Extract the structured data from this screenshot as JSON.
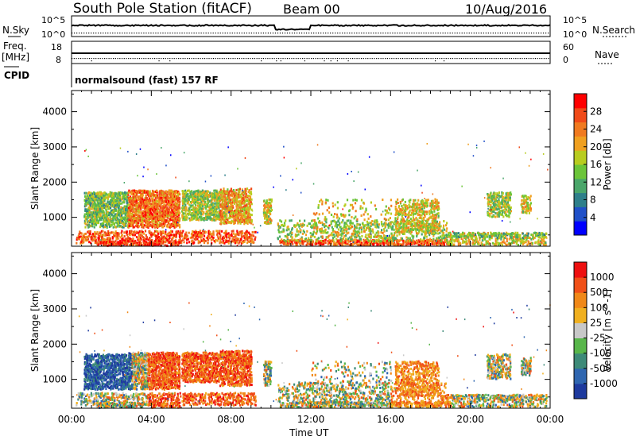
{
  "header": {
    "station": "South Pole Station (fitACF)",
    "beam": "Beam 00",
    "date": "10/Aug/2016"
  },
  "top_panels": {
    "nsky_label": "N.Sky",
    "nsky_ticks": [
      "10^5",
      "10^0"
    ],
    "nsearch_label": "N.Search",
    "freq_label_1": "Freq.",
    "freq_label_2": "[MHz]",
    "freq_ticks": [
      "18",
      "8"
    ],
    "nave_label": "Nave",
    "nave_ticks": [
      "60",
      "0"
    ],
    "cpid_label": "CPID",
    "cpid_text": "normalsound (fast) 157 RF"
  },
  "colors": {
    "power": [
      "#0000ff",
      "#2050c8",
      "#2e7f8a",
      "#4aa66a",
      "#6cc53a",
      "#b8cc20",
      "#f0a020",
      "#f07a20",
      "#f04a18",
      "#ff0000"
    ],
    "velocity": [
      "#1e3a9e",
      "#2f66b0",
      "#3d8a78",
      "#58b64a",
      "#c8c8c8",
      "#f0b020",
      "#f08818",
      "#f05018",
      "#ee1010"
    ]
  },
  "chart_data": [
    {
      "type": "heatmap",
      "quantity": "Power",
      "ylabel": "Slant Range [km]",
      "xlabel": "Time UT",
      "x_ticks": [
        "00:00",
        "04:00",
        "08:00",
        "12:00",
        "16:00",
        "20:00",
        "00:00"
      ],
      "y_ticks": [
        1000,
        2000,
        3000,
        4000
      ],
      "ylim": [
        180,
        4600
      ],
      "colorbar": {
        "label": "Power [dB]",
        "ticks": [
          4,
          8,
          12,
          16,
          20,
          24,
          28
        ],
        "range": [
          0,
          32
        ]
      }
    },
    {
      "type": "heatmap",
      "quantity": "Velocity",
      "ylabel": "Slant Range [km]",
      "xlabel": "Time UT",
      "x_ticks": [
        "00:00",
        "04:00",
        "08:00",
        "12:00",
        "16:00",
        "20:00",
        "00:00"
      ],
      "y_ticks": [
        1000,
        2000,
        3000,
        4000
      ],
      "ylim": [
        180,
        4600
      ],
      "colorbar": {
        "label": "Velocity [m s^-1]",
        "ticks": [
          "1000",
          "500",
          "100",
          "25",
          "-25",
          "-100",
          "-500",
          "-1000"
        ]
      }
    }
  ]
}
